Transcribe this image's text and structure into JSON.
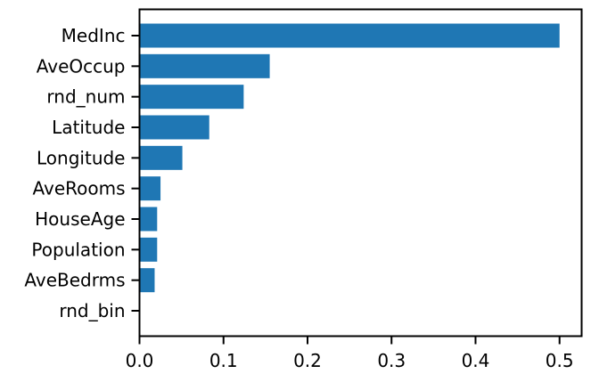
{
  "chart_data": {
    "type": "bar",
    "orientation": "horizontal",
    "categories": [
      "MedInc",
      "AveOccup",
      "rnd_num",
      "Latitude",
      "Longitude",
      "AveRooms",
      "HouseAge",
      "Population",
      "AveBedrms",
      "rnd_bin"
    ],
    "values": [
      0.5,
      0.155,
      0.124,
      0.083,
      0.051,
      0.025,
      0.021,
      0.021,
      0.018,
      0.0
    ],
    "xlim": [
      0.0,
      0.5263
    ],
    "xticks": [
      "0.0",
      "0.1",
      "0.2",
      "0.3",
      "0.4",
      "0.5"
    ],
    "xtick_values": [
      0.0,
      0.1,
      0.2,
      0.3,
      0.4,
      0.5
    ],
    "bar_color": "#1f77b4",
    "grid": false,
    "title": "",
    "xlabel": "",
    "ylabel": ""
  }
}
